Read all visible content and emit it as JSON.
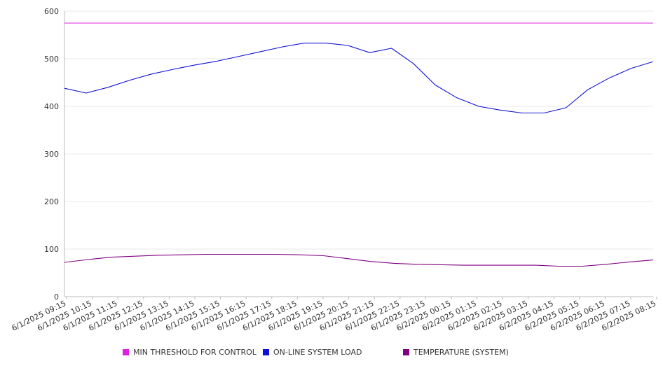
{
  "chart_data": {
    "type": "line",
    "y_ticks": [
      0,
      100,
      200,
      300,
      400,
      500,
      600
    ],
    "ylim": [
      0,
      600
    ],
    "x_tick_labels": [
      "6/1/2025 09:15",
      "6/1/2025 10:15",
      "6/1/2025 11:15",
      "6/1/2025 12:15",
      "6/1/2025 13:15",
      "6/1/2025 14:15",
      "6/1/2025 15:15",
      "6/1/2025 16:15",
      "6/1/2025 17:15",
      "6/1/2025 18:15",
      "6/1/2025 19:15",
      "6/1/2025 20:15",
      "6/1/2025 21:15",
      "6/1/2025 22:15",
      "6/1/2025 23:15",
      "6/2/2025 00:15",
      "6/2/2025 01:15",
      "6/2/2025 02:15",
      "6/2/2025 03:15",
      "6/2/2025 04:15",
      "6/2/2025 05:15",
      "6/2/2025 06:15",
      "6/2/2025 07:15",
      "6/2/2025 08:15"
    ],
    "grid": true,
    "legend_position": "bottom",
    "series": [
      {
        "name": "MIN THRESHOLD FOR CONTROL",
        "color": "#e020e0",
        "values": [
          575,
          575,
          575,
          575,
          575,
          575,
          575,
          575,
          575,
          575,
          575,
          575,
          575,
          575,
          575,
          575,
          575,
          575,
          575,
          575,
          575,
          575,
          575,
          575,
          575
        ]
      },
      {
        "name": "ON-LINE SYSTEM LOAD",
        "color": "#1010d8",
        "values": [
          438,
          428,
          440,
          455,
          468,
          478,
          487,
          495,
          505,
          515,
          525,
          533,
          533,
          528,
          513,
          522,
          490,
          445,
          418,
          400,
          392,
          386,
          386,
          397,
          435,
          460,
          480,
          494
        ]
      },
      {
        "name": "TEMPERATURE (SYSTEM)",
        "color": "#800080",
        "values": [
          72,
          78,
          83,
          85,
          87,
          88,
          89,
          89,
          89,
          89,
          88,
          86,
          80,
          74,
          70,
          68,
          67,
          66,
          66,
          66,
          66,
          64,
          64,
          68,
          73,
          77
        ]
      }
    ]
  }
}
